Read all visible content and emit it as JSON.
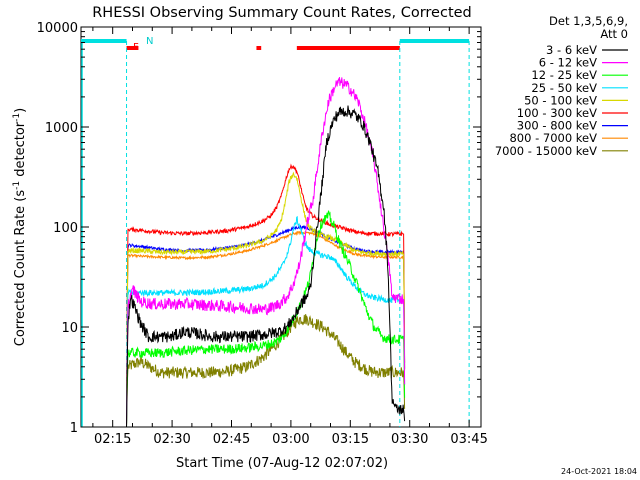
{
  "chart_data": {
    "type": "line",
    "title": "RHESSI Observing Summary Count Rates, Corrected",
    "xlabel": "Start Time (07-Aug-12 02:07:02)",
    "ylabel_main": "Corrected Count Rate (s",
    "ylabel_sup1": "-1",
    "ylabel_mid": " detector",
    "ylabel_sup2": "-1",
    "ylabel_end": ")",
    "x_unit": "minutes after 02:07:02",
    "xlim": [
      0,
      101
    ],
    "y_scale": "log",
    "ylim": [
      1,
      10000
    ],
    "x_ticks": [
      {
        "t": 8,
        "label": "02:15"
      },
      {
        "t": 23,
        "label": "02:30"
      },
      {
        "t": 38,
        "label": "02:45"
      },
      {
        "t": 53,
        "label": "03:00"
      },
      {
        "t": 68,
        "label": "03:15"
      },
      {
        "t": 83,
        "label": "03:30"
      },
      {
        "t": 98,
        "label": "03:45"
      }
    ],
    "y_ticks": [
      {
        "v": 1,
        "label": "1"
      },
      {
        "v": 10,
        "label": "10"
      },
      {
        "v": 100,
        "label": "100"
      },
      {
        "v": 1000,
        "label": "1000"
      },
      {
        "v": 10000,
        "label": "10000"
      }
    ],
    "legend_title_1": "Det 1,3,5,6,9,",
    "legend_title_2": "Att 0",
    "legend_position": "top-right outside",
    "series": [
      {
        "name": "3 - 6 keV",
        "color": "#000000",
        "noise": 0.06,
        "points": [
          [
            11.5,
            1
          ],
          [
            11.8,
            10
          ],
          [
            12.5,
            20
          ],
          [
            13.5,
            16
          ],
          [
            15,
            11
          ],
          [
            17,
            8
          ],
          [
            20,
            8
          ],
          [
            23,
            8
          ],
          [
            26,
            9
          ],
          [
            30,
            8.5
          ],
          [
            33,
            8
          ],
          [
            37,
            8
          ],
          [
            42,
            8
          ],
          [
            47,
            8.5
          ],
          [
            50,
            9
          ],
          [
            52,
            10
          ],
          [
            54,
            13
          ],
          [
            55.5,
            17
          ],
          [
            57,
            20
          ],
          [
            58,
            26
          ],
          [
            59,
            60
          ],
          [
            61,
            300
          ],
          [
            62,
            700
          ],
          [
            63.5,
            1100
          ],
          [
            65,
            1400
          ],
          [
            67,
            1450
          ],
          [
            69,
            1350
          ],
          [
            71,
            1100
          ],
          [
            73,
            700
          ],
          [
            75,
            350
          ],
          [
            76.5,
            150
          ],
          [
            77.5,
            40
          ],
          [
            78,
            10
          ],
          [
            78.5,
            2
          ],
          [
            79.5,
            1.5
          ],
          [
            81.5,
            1.5
          ],
          [
            81.8,
            1
          ]
        ]
      },
      {
        "name": "6 - 12 keV",
        "color": "#ff00ff",
        "noise": 0.06,
        "points": [
          [
            11.5,
            1
          ],
          [
            11.8,
            16
          ],
          [
            13,
            24
          ],
          [
            15,
            18
          ],
          [
            18,
            17
          ],
          [
            22,
            17
          ],
          [
            27,
            17
          ],
          [
            32,
            16.5
          ],
          [
            37,
            16
          ],
          [
            42,
            15.5
          ],
          [
            46,
            15
          ],
          [
            48,
            15.5
          ],
          [
            50,
            17
          ],
          [
            52,
            20
          ],
          [
            53.5,
            26
          ],
          [
            55,
            40
          ],
          [
            56.5,
            80
          ],
          [
            57.5,
            130
          ],
          [
            58.5,
            180
          ],
          [
            59.5,
            350
          ],
          [
            61,
            900
          ],
          [
            62.5,
            1800
          ],
          [
            64,
            2500
          ],
          [
            65,
            2800
          ],
          [
            66.5,
            2700
          ],
          [
            68,
            2400
          ],
          [
            70,
            1800
          ],
          [
            72,
            1000
          ],
          [
            74,
            450
          ],
          [
            75.5,
            180
          ],
          [
            77,
            70
          ],
          [
            78,
            35
          ],
          [
            78.5,
            20
          ],
          [
            81.5,
            19
          ],
          [
            81.8,
            1
          ]
        ]
      },
      {
        "name": "12 - 25 keV",
        "color": "#00ff00",
        "noise": 0.05,
        "points": [
          [
            11.5,
            1
          ],
          [
            11.8,
            5.5
          ],
          [
            14,
            5.5
          ],
          [
            20,
            5.5
          ],
          [
            26,
            5.8
          ],
          [
            32,
            6
          ],
          [
            37,
            6
          ],
          [
            42,
            6.2
          ],
          [
            46,
            6.5
          ],
          [
            49,
            7
          ],
          [
            51,
            8
          ],
          [
            52.5,
            10
          ],
          [
            54,
            13
          ],
          [
            55.5,
            17
          ],
          [
            57,
            24
          ],
          [
            58,
            34
          ],
          [
            59,
            60
          ],
          [
            60,
            90
          ],
          [
            61,
            115
          ],
          [
            62.5,
            130
          ],
          [
            64,
            100
          ],
          [
            65,
            75
          ],
          [
            66,
            60
          ],
          [
            68,
            40
          ],
          [
            70,
            25
          ],
          [
            72,
            15
          ],
          [
            74,
            10
          ],
          [
            76,
            8
          ],
          [
            78,
            7.5
          ],
          [
            81.5,
            7.5
          ],
          [
            81.8,
            1
          ]
        ]
      },
      {
        "name": "25 - 50 keV",
        "color": "#00e0ff",
        "noise": 0.03,
        "points": [
          [
            11.5,
            1
          ],
          [
            11.8,
            22
          ],
          [
            15,
            22
          ],
          [
            20,
            22
          ],
          [
            26,
            22
          ],
          [
            32,
            22.5
          ],
          [
            37,
            23
          ],
          [
            42,
            24
          ],
          [
            46,
            26
          ],
          [
            49,
            32
          ],
          [
            51,
            42
          ],
          [
            52.5,
            60
          ],
          [
            53.5,
            90
          ],
          [
            54.5,
            120
          ],
          [
            55.5,
            95
          ],
          [
            56.5,
            70
          ],
          [
            57.5,
            60
          ],
          [
            59,
            55
          ],
          [
            61,
            52
          ],
          [
            63,
            50
          ],
          [
            65,
            42
          ],
          [
            67,
            32
          ],
          [
            69,
            26
          ],
          [
            71,
            22
          ],
          [
            73,
            20
          ],
          [
            76,
            19
          ],
          [
            78,
            18.5
          ],
          [
            81.5,
            18.5
          ],
          [
            81.8,
            1
          ]
        ]
      },
      {
        "name": "50 - 100 keV",
        "color": "#d8d800",
        "noise": 0.025,
        "points": [
          [
            11.5,
            1
          ],
          [
            11.8,
            58
          ],
          [
            15,
            58
          ],
          [
            20,
            56
          ],
          [
            26,
            56
          ],
          [
            32,
            57
          ],
          [
            37,
            60
          ],
          [
            42,
            65
          ],
          [
            46,
            73
          ],
          [
            48,
            82
          ],
          [
            49.5,
            95
          ],
          [
            50.5,
            115
          ],
          [
            51.5,
            170
          ],
          [
            52.5,
            280
          ],
          [
            53.5,
            340
          ],
          [
            54.5,
            310
          ],
          [
            55.5,
            200
          ],
          [
            56.5,
            130
          ],
          [
            57.5,
            100
          ],
          [
            59,
            90
          ],
          [
            61,
            82
          ],
          [
            63,
            78
          ],
          [
            65,
            72
          ],
          [
            67,
            65
          ],
          [
            69,
            58
          ],
          [
            71,
            56
          ],
          [
            73,
            55
          ],
          [
            76,
            54
          ],
          [
            78,
            54
          ],
          [
            81.5,
            54
          ],
          [
            81.8,
            1
          ]
        ]
      },
      {
        "name": "100 - 300 keV",
        "color": "#ff0000",
        "noise": 0.02,
        "points": [
          [
            11.5,
            1
          ],
          [
            11.8,
            95
          ],
          [
            15,
            93
          ],
          [
            20,
            88
          ],
          [
            26,
            86
          ],
          [
            32,
            88
          ],
          [
            37,
            92
          ],
          [
            42,
            100
          ],
          [
            46,
            115
          ],
          [
            48,
            130
          ],
          [
            49.5,
            160
          ],
          [
            50.5,
            200
          ],
          [
            51.5,
            280
          ],
          [
            52.5,
            380
          ],
          [
            53.5,
            410
          ],
          [
            54.5,
            360
          ],
          [
            55.5,
            250
          ],
          [
            56.5,
            170
          ],
          [
            57.5,
            140
          ],
          [
            59,
            125
          ],
          [
            61,
            115
          ],
          [
            63,
            105
          ],
          [
            65,
            100
          ],
          [
            67,
            95
          ],
          [
            69,
            90
          ],
          [
            71,
            87
          ],
          [
            73,
            86
          ],
          [
            76,
            86
          ],
          [
            78,
            85
          ],
          [
            81.5,
            85
          ],
          [
            81.8,
            1
          ]
        ]
      },
      {
        "name": "300 - 800 keV",
        "color": "#0000ff",
        "noise": 0.015,
        "points": [
          [
            11.5,
            1
          ],
          [
            11.8,
            66
          ],
          [
            15,
            64
          ],
          [
            20,
            60
          ],
          [
            26,
            58
          ],
          [
            32,
            59
          ],
          [
            37,
            62
          ],
          [
            42,
            67
          ],
          [
            46,
            74
          ],
          [
            49,
            82
          ],
          [
            51,
            88
          ],
          [
            53,
            95
          ],
          [
            55,
            100
          ],
          [
            57,
            98
          ],
          [
            59,
            92
          ],
          [
            61,
            84
          ],
          [
            63,
            76
          ],
          [
            65,
            70
          ],
          [
            67,
            65
          ],
          [
            69,
            61
          ],
          [
            71,
            58
          ],
          [
            73,
            57
          ],
          [
            76,
            56
          ],
          [
            78,
            56
          ],
          [
            81.5,
            56
          ],
          [
            81.8,
            1
          ]
        ]
      },
      {
        "name": "800 - 7000 keV",
        "color": "#ff8800",
        "noise": 0.012,
        "points": [
          [
            11.5,
            1
          ],
          [
            11.8,
            52
          ],
          [
            15,
            51
          ],
          [
            20,
            50
          ],
          [
            26,
            49
          ],
          [
            32,
            50
          ],
          [
            37,
            53
          ],
          [
            42,
            58
          ],
          [
            46,
            65
          ],
          [
            49,
            72
          ],
          [
            51,
            78
          ],
          [
            53,
            84
          ],
          [
            55,
            88
          ],
          [
            57,
            88
          ],
          [
            59,
            85
          ],
          [
            61,
            78
          ],
          [
            63,
            70
          ],
          [
            65,
            63
          ],
          [
            67,
            58
          ],
          [
            69,
            54
          ],
          [
            71,
            52
          ],
          [
            73,
            51
          ],
          [
            76,
            50
          ],
          [
            78,
            50
          ],
          [
            81.5,
            50
          ],
          [
            81.8,
            1
          ]
        ]
      },
      {
        "name": "7000 - 15000 keV",
        "color": "#808000",
        "noise": 0.06,
        "points": [
          [
            11.5,
            1
          ],
          [
            11.8,
            4
          ],
          [
            15,
            4.5
          ],
          [
            20,
            3.5
          ],
          [
            26,
            3.5
          ],
          [
            32,
            3.5
          ],
          [
            37,
            3.6
          ],
          [
            42,
            4
          ],
          [
            46,
            5
          ],
          [
            49,
            6.5
          ],
          [
            51,
            8
          ],
          [
            53,
            10
          ],
          [
            55,
            12
          ],
          [
            57,
            12
          ],
          [
            59,
            11
          ],
          [
            61,
            10
          ],
          [
            63,
            8.5
          ],
          [
            65,
            7
          ],
          [
            67,
            5.5
          ],
          [
            69,
            4.5
          ],
          [
            71,
            4
          ],
          [
            73,
            3.6
          ],
          [
            76,
            3.5
          ],
          [
            78,
            3.5
          ],
          [
            81.5,
            3.5
          ],
          [
            81.8,
            1
          ]
        ]
      }
    ],
    "annotations": {
      "flag_F": "F",
      "flag_N": "N",
      "flare_bars": [
        [
          11.5,
          14.5
        ],
        [
          44.3,
          45.5
        ],
        [
          54.5,
          80.5
        ]
      ],
      "night_bars": [
        [
          0,
          11.5
        ],
        [
          80.5,
          98
        ]
      ],
      "vertical_dashed_lines": [
        11.5,
        80.5,
        98
      ]
    },
    "footer": "24-Oct-2021 18:04"
  }
}
